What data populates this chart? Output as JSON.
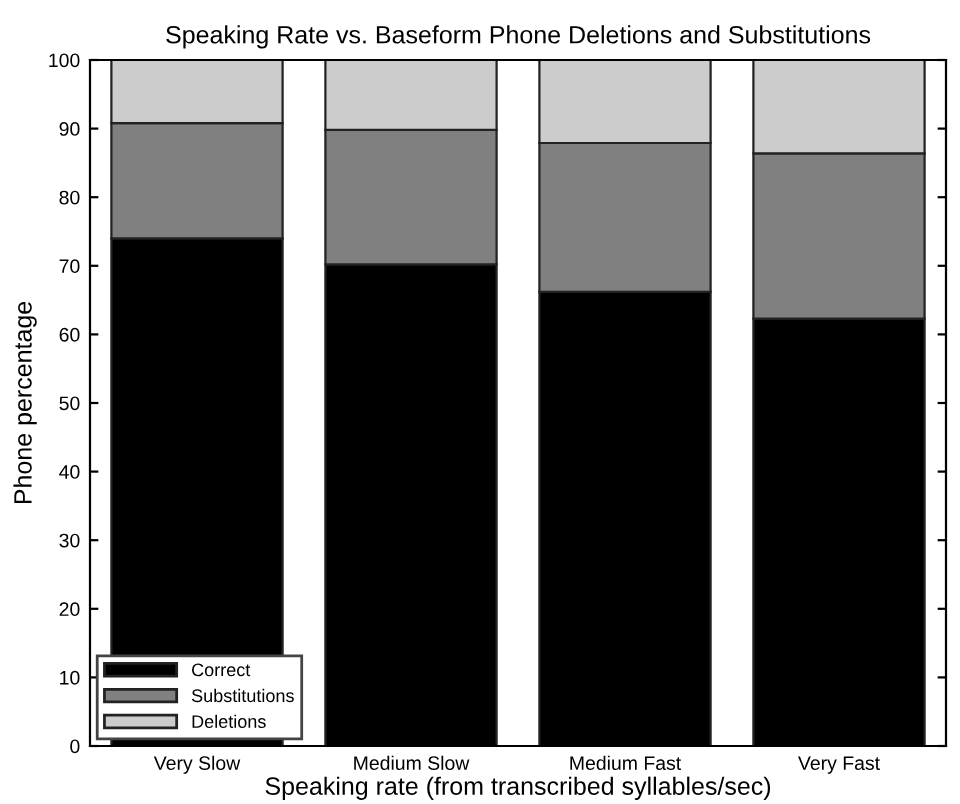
{
  "chart_data": {
    "type": "bar",
    "stacked": true,
    "title": "Speaking Rate vs. Baseform Phone Deletions and Substitutions",
    "xlabel": "Speaking rate (from transcribed syllables/sec)",
    "ylabel": "Phone percentage",
    "categories": [
      "Very Slow",
      "Medium Slow",
      "Medium Fast",
      "Very Fast"
    ],
    "series": [
      {
        "name": "Correct",
        "color": "#000000",
        "values": [
          74,
          70.2,
          66.2,
          62.3
        ]
      },
      {
        "name": "Substitutions",
        "color": "#808080",
        "values": [
          16.8,
          19.6,
          21.7,
          24.1
        ]
      },
      {
        "name": "Deletions",
        "color": "#cccccc",
        "values": [
          9.2,
          10.2,
          12.1,
          13.6
        ]
      }
    ],
    "ylim": [
      0,
      100
    ],
    "yticks": [
      0,
      10,
      20,
      30,
      40,
      50,
      60,
      70,
      80,
      90,
      100
    ],
    "grid": false,
    "legend": "bottom left"
  }
}
